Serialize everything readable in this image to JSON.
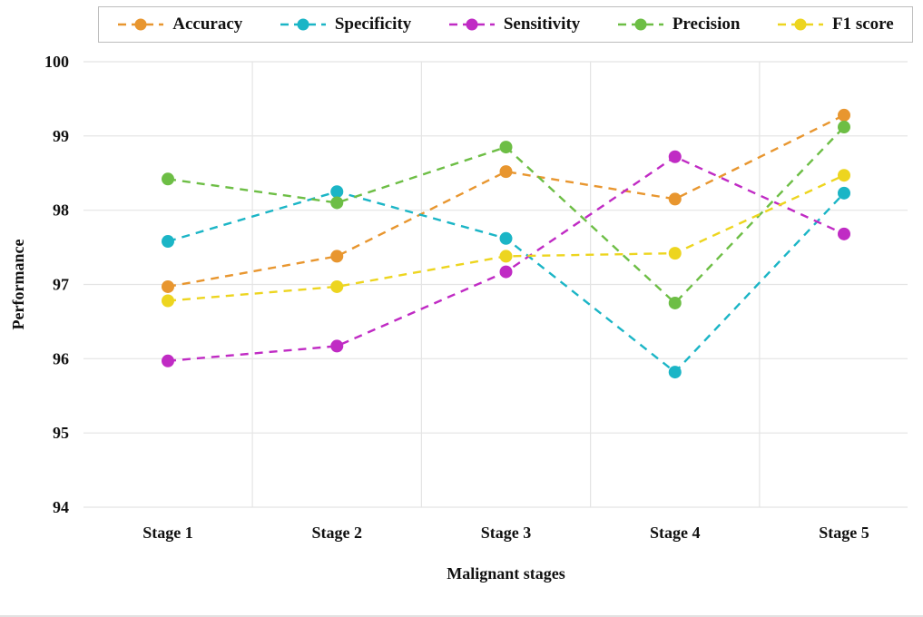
{
  "figure": {
    "background": "#ffffff",
    "gridline_color": "#e4e4e4",
    "text_color": "#111111",
    "legend_border_color": "#bdbdbd"
  },
  "chart_data": {
    "type": "line",
    "title": "",
    "xlabel": "Malignant stages",
    "ylabel": "Performance",
    "categories": [
      "Stage 1",
      "Stage 2",
      "Stage 3",
      "Stage 4",
      "Stage 5"
    ],
    "ylim": [
      94,
      100
    ],
    "yticks": [
      94,
      95,
      96,
      97,
      98,
      99,
      100
    ],
    "grid": true,
    "legend_position": "top",
    "line_style": "dashed",
    "marker": "circle",
    "series": [
      {
        "name": "Accuracy",
        "color": "#E8962F",
        "values": [
          96.97,
          97.38,
          98.52,
          98.15,
          99.28
        ]
      },
      {
        "name": "Specificity",
        "color": "#1BB5C6",
        "values": [
          97.58,
          98.25,
          97.62,
          95.82,
          98.23
        ]
      },
      {
        "name": "Sensitivity",
        "color": "#C02BC4",
        "values": [
          95.97,
          96.17,
          97.17,
          98.72,
          97.68
        ]
      },
      {
        "name": "Precision",
        "color": "#6DBE45",
        "values": [
          98.42,
          98.1,
          98.85,
          96.75,
          99.12
        ]
      },
      {
        "name": "F1 score",
        "color": "#EDD51F",
        "values": [
          96.78,
          96.97,
          97.38,
          97.42,
          98.47
        ]
      }
    ]
  }
}
